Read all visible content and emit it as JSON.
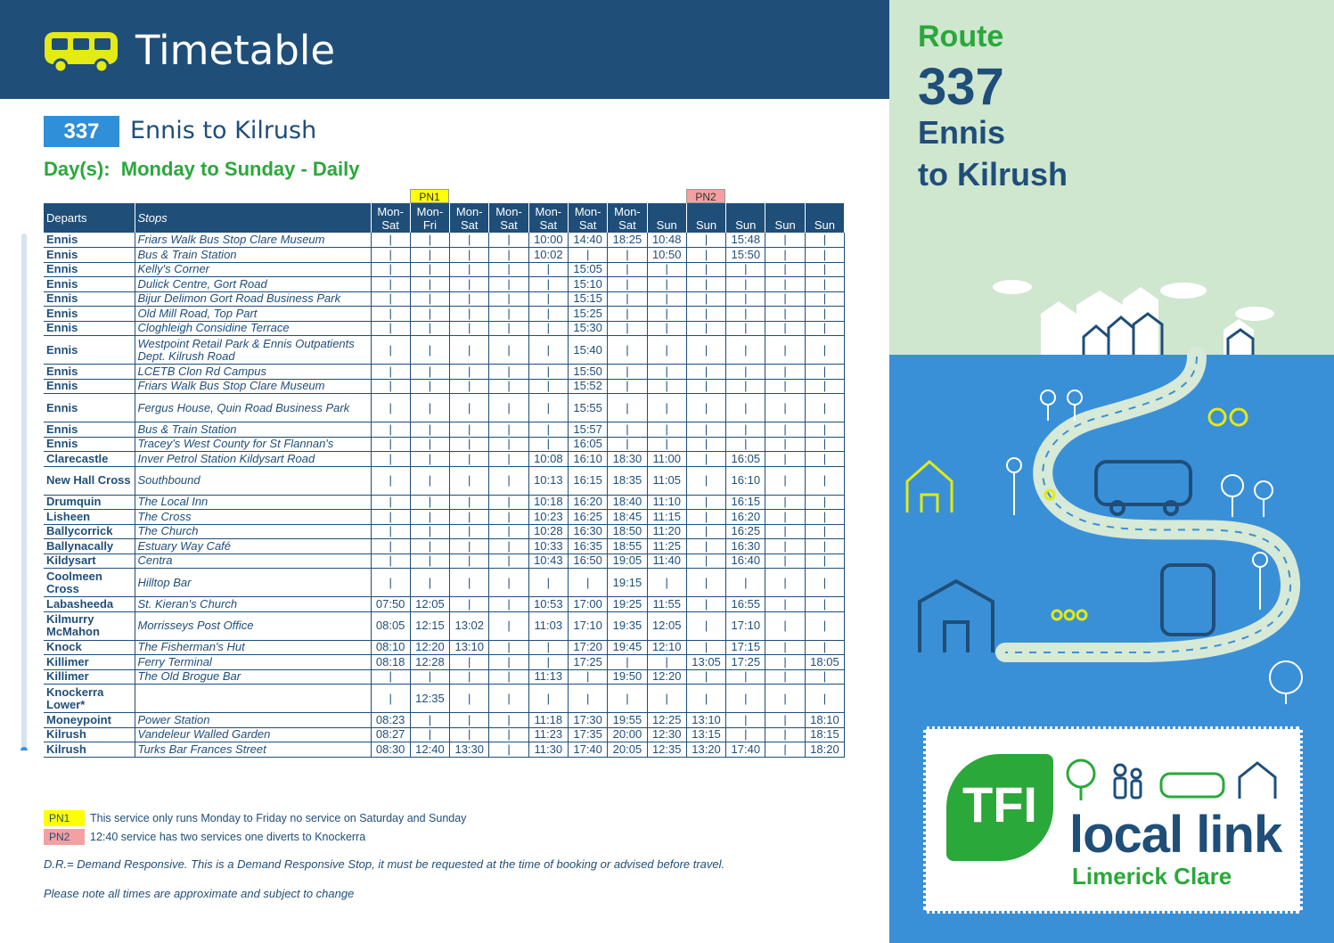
{
  "header": {
    "title": "Timetable",
    "bus_icon": "bus-icon"
  },
  "route": {
    "number": "337",
    "name": "Ennis to Kilrush",
    "days": "Day(s):  Monday to Sunday - Daily"
  },
  "badges": {
    "pn1": "PN1",
    "pn2": "PN2"
  },
  "table": {
    "departs_header": "Departs",
    "stops_header": "Stops",
    "columns": [
      [
        "Mon-",
        "Sat"
      ],
      [
        "Mon-",
        "Fri"
      ],
      [
        "Mon-",
        "Sat"
      ],
      [
        "Mon-",
        "Sat"
      ],
      [
        "Mon-",
        "Sat"
      ],
      [
        "Mon-",
        "Sat"
      ],
      [
        "Mon-",
        "Sat"
      ],
      [
        "",
        "Sun"
      ],
      [
        "",
        "Sun"
      ],
      [
        "",
        "Sun"
      ],
      [
        "",
        "Sun"
      ],
      [
        "",
        "Sun"
      ]
    ],
    "rows": [
      {
        "d": "Ennis",
        "s": "Friars Walk Bus Stop Clare Museum",
        "t": [
          "|",
          "|",
          "|",
          "|",
          "10:00",
          "14:40",
          "18:25",
          "10:48",
          "|",
          "15:48",
          "|",
          "|"
        ]
      },
      {
        "d": "Ennis",
        "s": "Bus & Train Station",
        "t": [
          "|",
          "|",
          "|",
          "|",
          "10:02",
          "|",
          "|",
          "10:50",
          "|",
          "15:50",
          "|",
          "|"
        ]
      },
      {
        "d": "Ennis",
        "s": "Kelly's Corner",
        "t": [
          "|",
          "|",
          "|",
          "|",
          "|",
          "15:05",
          "|",
          "|",
          "|",
          "|",
          "|",
          "|"
        ]
      },
      {
        "d": "Ennis",
        "s": "Dulick Centre, Gort Road",
        "t": [
          "|",
          "|",
          "|",
          "|",
          "|",
          "15:10",
          "|",
          "|",
          "|",
          "|",
          "|",
          "|"
        ]
      },
      {
        "d": "Ennis",
        "s": "Bijur Delimon Gort Road Business Park",
        "t": [
          "|",
          "|",
          "|",
          "|",
          "|",
          "15:15",
          "|",
          "|",
          "|",
          "|",
          "|",
          "|"
        ]
      },
      {
        "d": "Ennis",
        "s": "Old Mill Road, Top Part",
        "t": [
          "|",
          "|",
          "|",
          "|",
          "|",
          "15:25",
          "|",
          "|",
          "|",
          "|",
          "|",
          "|"
        ]
      },
      {
        "d": "Ennis",
        "s": "Cloghleigh Considine Terrace",
        "t": [
          "|",
          "|",
          "|",
          "|",
          "|",
          "15:30",
          "|",
          "|",
          "|",
          "|",
          "|",
          "|"
        ]
      },
      {
        "d": "Ennis",
        "s": "Westpoint Retail Park & Ennis Outpatients Dept. Kilrush Road",
        "t": [
          "|",
          "|",
          "|",
          "|",
          "|",
          "15:40",
          "|",
          "|",
          "|",
          "|",
          "|",
          "|"
        ],
        "tall": true
      },
      {
        "d": "Ennis",
        "s": "LCETB Clon Rd Campus",
        "t": [
          "|",
          "|",
          "|",
          "|",
          "|",
          "15:50",
          "|",
          "|",
          "|",
          "|",
          "|",
          "|"
        ]
      },
      {
        "d": "Ennis",
        "s": "Friars Walk Bus Stop Clare Museum",
        "t": [
          "|",
          "|",
          "|",
          "|",
          "|",
          "15:52",
          "|",
          "|",
          "|",
          "|",
          "|",
          "|"
        ]
      },
      {
        "d": "Ennis",
        "s": "Fergus House, Quin Road Business Park",
        "t": [
          "|",
          "|",
          "|",
          "|",
          "|",
          "15:55",
          "|",
          "|",
          "|",
          "|",
          "|",
          "|"
        ],
        "tall": true
      },
      {
        "d": "Ennis",
        "s": "Bus & Train Station",
        "t": [
          "|",
          "|",
          "|",
          "|",
          "|",
          "15:57",
          "|",
          "|",
          "|",
          "|",
          "|",
          "|"
        ]
      },
      {
        "d": "Ennis",
        "s": "Tracey's West County for St Flannan's",
        "t": [
          "|",
          "|",
          "|",
          "|",
          "|",
          "16:05",
          "|",
          "|",
          "|",
          "|",
          "|",
          "|"
        ]
      },
      {
        "d": "Clarecastle",
        "s": "Inver Petrol Station Kildysart Road",
        "t": [
          "|",
          "|",
          "|",
          "|",
          "10:08",
          "16:10",
          "18:30",
          "11:00",
          "|",
          "16:05",
          "|",
          "|"
        ]
      },
      {
        "d": "New Hall Cross",
        "s": "Southbound",
        "t": [
          "|",
          "|",
          "|",
          "|",
          "10:13",
          "16:15",
          "18:35",
          "11:05",
          "|",
          "16:10",
          "|",
          "|"
        ],
        "tall": true
      },
      {
        "d": "Drumquin",
        "s": "The Local Inn",
        "t": [
          "|",
          "|",
          "|",
          "|",
          "10:18",
          "16:20",
          "18:40",
          "11:10",
          "|",
          "16:15",
          "|",
          "|"
        ]
      },
      {
        "d": "Lisheen",
        "s": "The Cross",
        "t": [
          "|",
          "|",
          "|",
          "|",
          "10:23",
          "16:25",
          "18:45",
          "11:15",
          "|",
          "16:20",
          "|",
          "|"
        ]
      },
      {
        "d": "Ballycorrick",
        "s": "The Church",
        "t": [
          "|",
          "|",
          "|",
          "|",
          "10:28",
          "16:30",
          "18:50",
          "11:20",
          "|",
          "16:25",
          "|",
          "|"
        ]
      },
      {
        "d": "Ballynacally",
        "s": "Estuary Way Café",
        "t": [
          "|",
          "|",
          "|",
          "|",
          "10:33",
          "16:35",
          "18:55",
          "11:25",
          "|",
          "16:30",
          "|",
          "|"
        ]
      },
      {
        "d": "Kildysart",
        "s": "Centra",
        "t": [
          "|",
          "|",
          "|",
          "|",
          "10:43",
          "16:50",
          "19:05",
          "11:40",
          "|",
          "16:40",
          "|",
          "|"
        ]
      },
      {
        "d": "Coolmeen Cross",
        "s": "Hilltop Bar",
        "t": [
          "|",
          "|",
          "|",
          "|",
          "|",
          "|",
          "19:15",
          "|",
          "|",
          "|",
          "|",
          "|"
        ],
        "tall": true
      },
      {
        "d": "Labasheeda",
        "s": "St. Kieran's  Church",
        "t": [
          "07:50",
          "12:05",
          "|",
          "|",
          "10:53",
          "17:00",
          "19:25",
          "11:55",
          "|",
          "16:55",
          "|",
          "|"
        ]
      },
      {
        "d": "Kilmurry McMahon",
        "s": "Morrisseys Post Office",
        "t": [
          "08:05",
          "12:15",
          "13:02",
          "|",
          "11:03",
          "17:10",
          "19:35",
          "12:05",
          "|",
          "17:10",
          "|",
          "|"
        ],
        "tall": true
      },
      {
        "d": "Knock",
        "s": "The Fisherman's Hut",
        "t": [
          "08:10",
          "12:20",
          "13:10",
          "|",
          "|",
          "17:20",
          "19:45",
          "12:10",
          "|",
          "17:15",
          "|",
          "|"
        ]
      },
      {
        "d": "Killimer",
        "s": "Ferry Terminal",
        "t": [
          "08:18",
          "12:28",
          "|",
          "|",
          "|",
          "17:25",
          "|",
          "|",
          "13:05",
          "17:25",
          "|",
          "18:05"
        ]
      },
      {
        "d": "Killimer",
        "s": "The Old Brogue Bar",
        "t": [
          "|",
          "|",
          "|",
          "|",
          "11:13",
          "|",
          "19:50",
          "12:20",
          "|",
          "|",
          "|",
          "|"
        ]
      },
      {
        "d": "Knockerra Lower*",
        "s": "",
        "t": [
          "|",
          "12:35",
          "|",
          "|",
          "|",
          "|",
          "|",
          "|",
          "|",
          "|",
          "|",
          "|"
        ],
        "tall": true
      },
      {
        "d": "Moneypoint",
        "s": "Power Station",
        "t": [
          "08:23",
          "|",
          "|",
          "|",
          "11:18",
          "17:30",
          "19:55",
          "12:25",
          "13:10",
          "|",
          "|",
          "18:10"
        ]
      },
      {
        "d": "Kilrush",
        "s": "Vandeleur Walled Garden",
        "t": [
          "08:27",
          "|",
          "|",
          "|",
          "11:23",
          "17:35",
          "20:00",
          "12:30",
          "13:15",
          "|",
          "|",
          "18:15"
        ]
      },
      {
        "d": "Kilrush",
        "s": "Turks Bar Frances Street",
        "t": [
          "08:30",
          "12:40",
          "13:30",
          "|",
          "11:30",
          "17:40",
          "20:05",
          "12:35",
          "13:20",
          "17:40",
          "|",
          "18:20"
        ]
      }
    ]
  },
  "legend": {
    "pn1_tag": "PN1",
    "pn1_text": "This service only runs Monday to Friday no service on Saturday and Sunday",
    "pn2_tag": "PN2",
    "pn2_text": "12:40 service has two services one diverts to Knockerra",
    "dr_note": "D.R.= Demand Responsive. This is a Demand Responsive Stop, it must be requested at the time of booking or advised before travel.",
    "approx_note": "Please note all times are approximate and subject to change"
  },
  "side": {
    "route_label": "Route",
    "route_number": "337",
    "from": "Ennis",
    "to": "to Kilrush"
  },
  "logo": {
    "tfi": "TFI",
    "local_link": "local link",
    "region": "Limerick Clare"
  },
  "colors": {
    "navy": "#1f4e79",
    "green": "#2aa83a",
    "blue": "#3a90d6",
    "pn1": "#ffff00",
    "pn2": "#f4a0a0"
  }
}
